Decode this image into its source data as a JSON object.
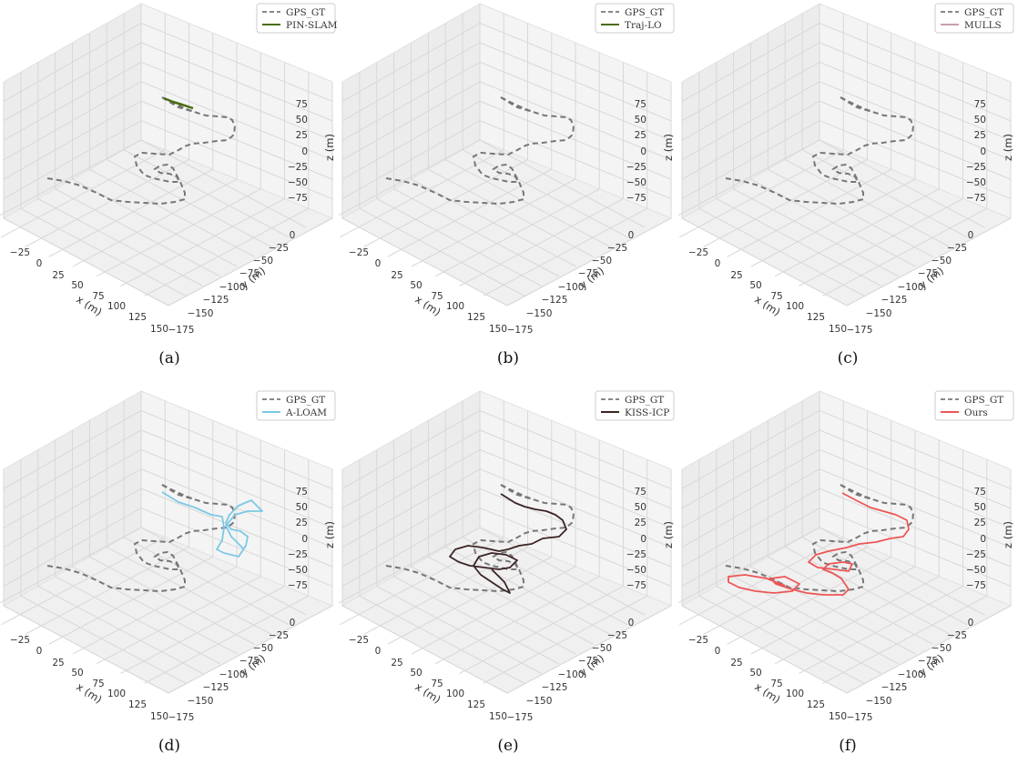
{
  "figure": {
    "axis_labels": {
      "x": "x (m)",
      "y": "y (m)",
      "z": "z (m)"
    },
    "gt_name": "GPS_GT",
    "colors": {
      "gt": "#777777",
      "pane": "#f2f2f2",
      "grid": "#d8d8d8",
      "text": "#333333"
    }
  },
  "chart_data": [
    {
      "type": "line3d",
      "caption": "(a)",
      "legend": [
        "GPS_GT",
        "PIN-SLAM"
      ],
      "legend_position": "top-right",
      "xlim": [
        -35,
        155
      ],
      "ylim": [
        -180,
        15
      ],
      "zlim": [
        -95,
        95
      ],
      "grid": true,
      "x_ticks": [
        -25,
        0,
        25,
        50,
        75,
        100,
        125,
        150
      ],
      "y_ticks": [
        0,
        -25,
        -50,
        -75,
        -100,
        -125,
        -150,
        -175
      ],
      "z_ticks": [
        75,
        50,
        25,
        0,
        -25,
        -50,
        -75
      ],
      "series": [
        {
          "name": "GPS_GT",
          "style": "dashed",
          "color": "#777777"
        },
        {
          "name": "PIN-SLAM",
          "style": "solid",
          "color": "#4a6b12"
        }
      ]
    },
    {
      "type": "line3d",
      "caption": "(b)",
      "legend": [
        "GPS_GT",
        "Traj-LO"
      ],
      "legend_position": "top-right",
      "xlim": [
        -35,
        155
      ],
      "ylim": [
        -180,
        15
      ],
      "zlim": [
        -95,
        95
      ],
      "grid": true,
      "x_ticks": [
        -25,
        0,
        25,
        50,
        75,
        100,
        125,
        150
      ],
      "y_ticks": [
        0,
        -25,
        -50,
        -75,
        -100,
        -125,
        -150,
        -175
      ],
      "z_ticks": [
        75,
        50,
        25,
        0,
        -25,
        -50,
        -75
      ],
      "series": [
        {
          "name": "GPS_GT",
          "style": "dashed",
          "color": "#777777"
        },
        {
          "name": "Traj-LO",
          "style": "solid",
          "color": "#4a6b12"
        }
      ]
    },
    {
      "type": "line3d",
      "caption": "(c)",
      "legend": [
        "GPS_GT",
        "MULLS"
      ],
      "legend_position": "top-right",
      "xlim": [
        -35,
        155
      ],
      "ylim": [
        -180,
        15
      ],
      "zlim": [
        -95,
        95
      ],
      "grid": true,
      "x_ticks": [
        -25,
        0,
        25,
        50,
        75,
        100,
        125,
        150
      ],
      "y_ticks": [
        0,
        -25,
        -50,
        -75,
        -100,
        -125,
        -150,
        -175
      ],
      "z_ticks": [
        75,
        50,
        25,
        0,
        -25,
        -50,
        -75
      ],
      "series": [
        {
          "name": "GPS_GT",
          "style": "dashed",
          "color": "#777777"
        },
        {
          "name": "MULLS",
          "style": "solid",
          "color": "#c9a0ad"
        }
      ]
    },
    {
      "type": "line3d",
      "caption": "(d)",
      "legend": [
        "GPS_GT",
        "A-LOAM"
      ],
      "legend_position": "top-right",
      "xlim": [
        -35,
        155
      ],
      "ylim": [
        -180,
        15
      ],
      "zlim": [
        -95,
        95
      ],
      "grid": true,
      "x_ticks": [
        -25,
        0,
        25,
        50,
        75,
        100,
        125,
        150
      ],
      "y_ticks": [
        0,
        -25,
        -50,
        -75,
        -100,
        -125,
        -150,
        -175
      ],
      "z_ticks": [
        75,
        50,
        25,
        0,
        -25,
        -50,
        -75
      ],
      "series": [
        {
          "name": "GPS_GT",
          "style": "dashed",
          "color": "#777777"
        },
        {
          "name": "A-LOAM",
          "style": "solid",
          "color": "#7cc8e6"
        }
      ]
    },
    {
      "type": "line3d",
      "caption": "(e)",
      "legend": [
        "GPS_GT",
        "KISS-ICP"
      ],
      "legend_position": "top-right",
      "xlim": [
        -35,
        155
      ],
      "ylim": [
        -180,
        15
      ],
      "zlim": [
        -95,
        95
      ],
      "grid": true,
      "x_ticks": [
        -25,
        0,
        25,
        50,
        75,
        100,
        125,
        150
      ],
      "y_ticks": [
        0,
        -25,
        -50,
        -75,
        -100,
        -125,
        -150,
        -175
      ],
      "z_ticks": [
        75,
        50,
        25,
        0,
        -25,
        -50,
        -75
      ],
      "series": [
        {
          "name": "GPS_GT",
          "style": "dashed",
          "color": "#777777"
        },
        {
          "name": "KISS-ICP",
          "style": "solid",
          "color": "#3b2424"
        }
      ]
    },
    {
      "type": "line3d",
      "caption": "(f)",
      "legend": [
        "GPS_GT",
        "Ours"
      ],
      "legend_position": "top-right",
      "xlim": [
        -35,
        155
      ],
      "ylim": [
        -180,
        15
      ],
      "zlim": [
        -95,
        95
      ],
      "grid": true,
      "x_ticks": [
        -25,
        0,
        25,
        50,
        75,
        100,
        125,
        150
      ],
      "y_ticks": [
        0,
        -25,
        -50,
        -75,
        -100,
        -125,
        -150,
        -175
      ],
      "z_ticks": [
        75,
        50,
        25,
        0,
        -25,
        -50,
        -75
      ],
      "series": [
        {
          "name": "GPS_GT",
          "style": "dashed",
          "color": "#777777"
        },
        {
          "name": "Ours",
          "style": "solid",
          "color": "#ee5555"
        }
      ]
    }
  ]
}
